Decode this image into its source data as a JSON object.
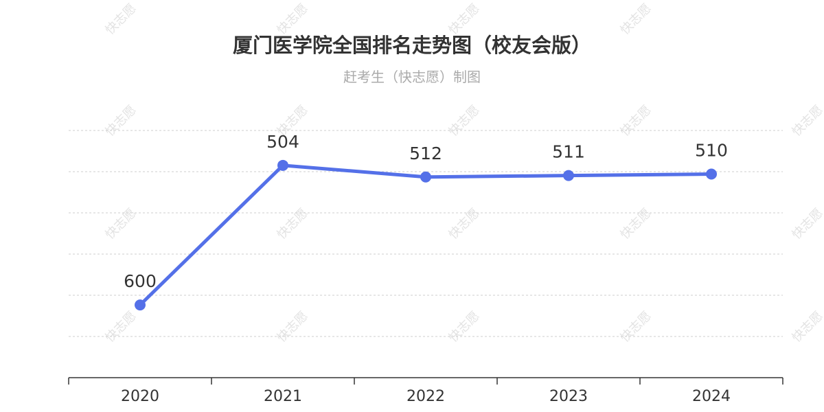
{
  "watermark_text": "快志愿",
  "chart_data": {
    "type": "line",
    "title": "厦门医学院全国排名走势图（校友会版）",
    "subtitle": "赶考生（快志愿）制图",
    "xlabel": "",
    "ylabel": "",
    "categories": [
      "2020",
      "2021",
      "2022",
      "2023",
      "2024"
    ],
    "values": [
      600,
      504,
      512,
      511,
      510
    ],
    "data_labels": [
      "600",
      "504",
      "512",
      "511",
      "510"
    ],
    "y_inverted": true,
    "ylim": [
      480,
      650
    ],
    "grid": true,
    "legend": "none",
    "colors": {
      "line": "#5470e8",
      "marker": "#5470e8"
    }
  }
}
